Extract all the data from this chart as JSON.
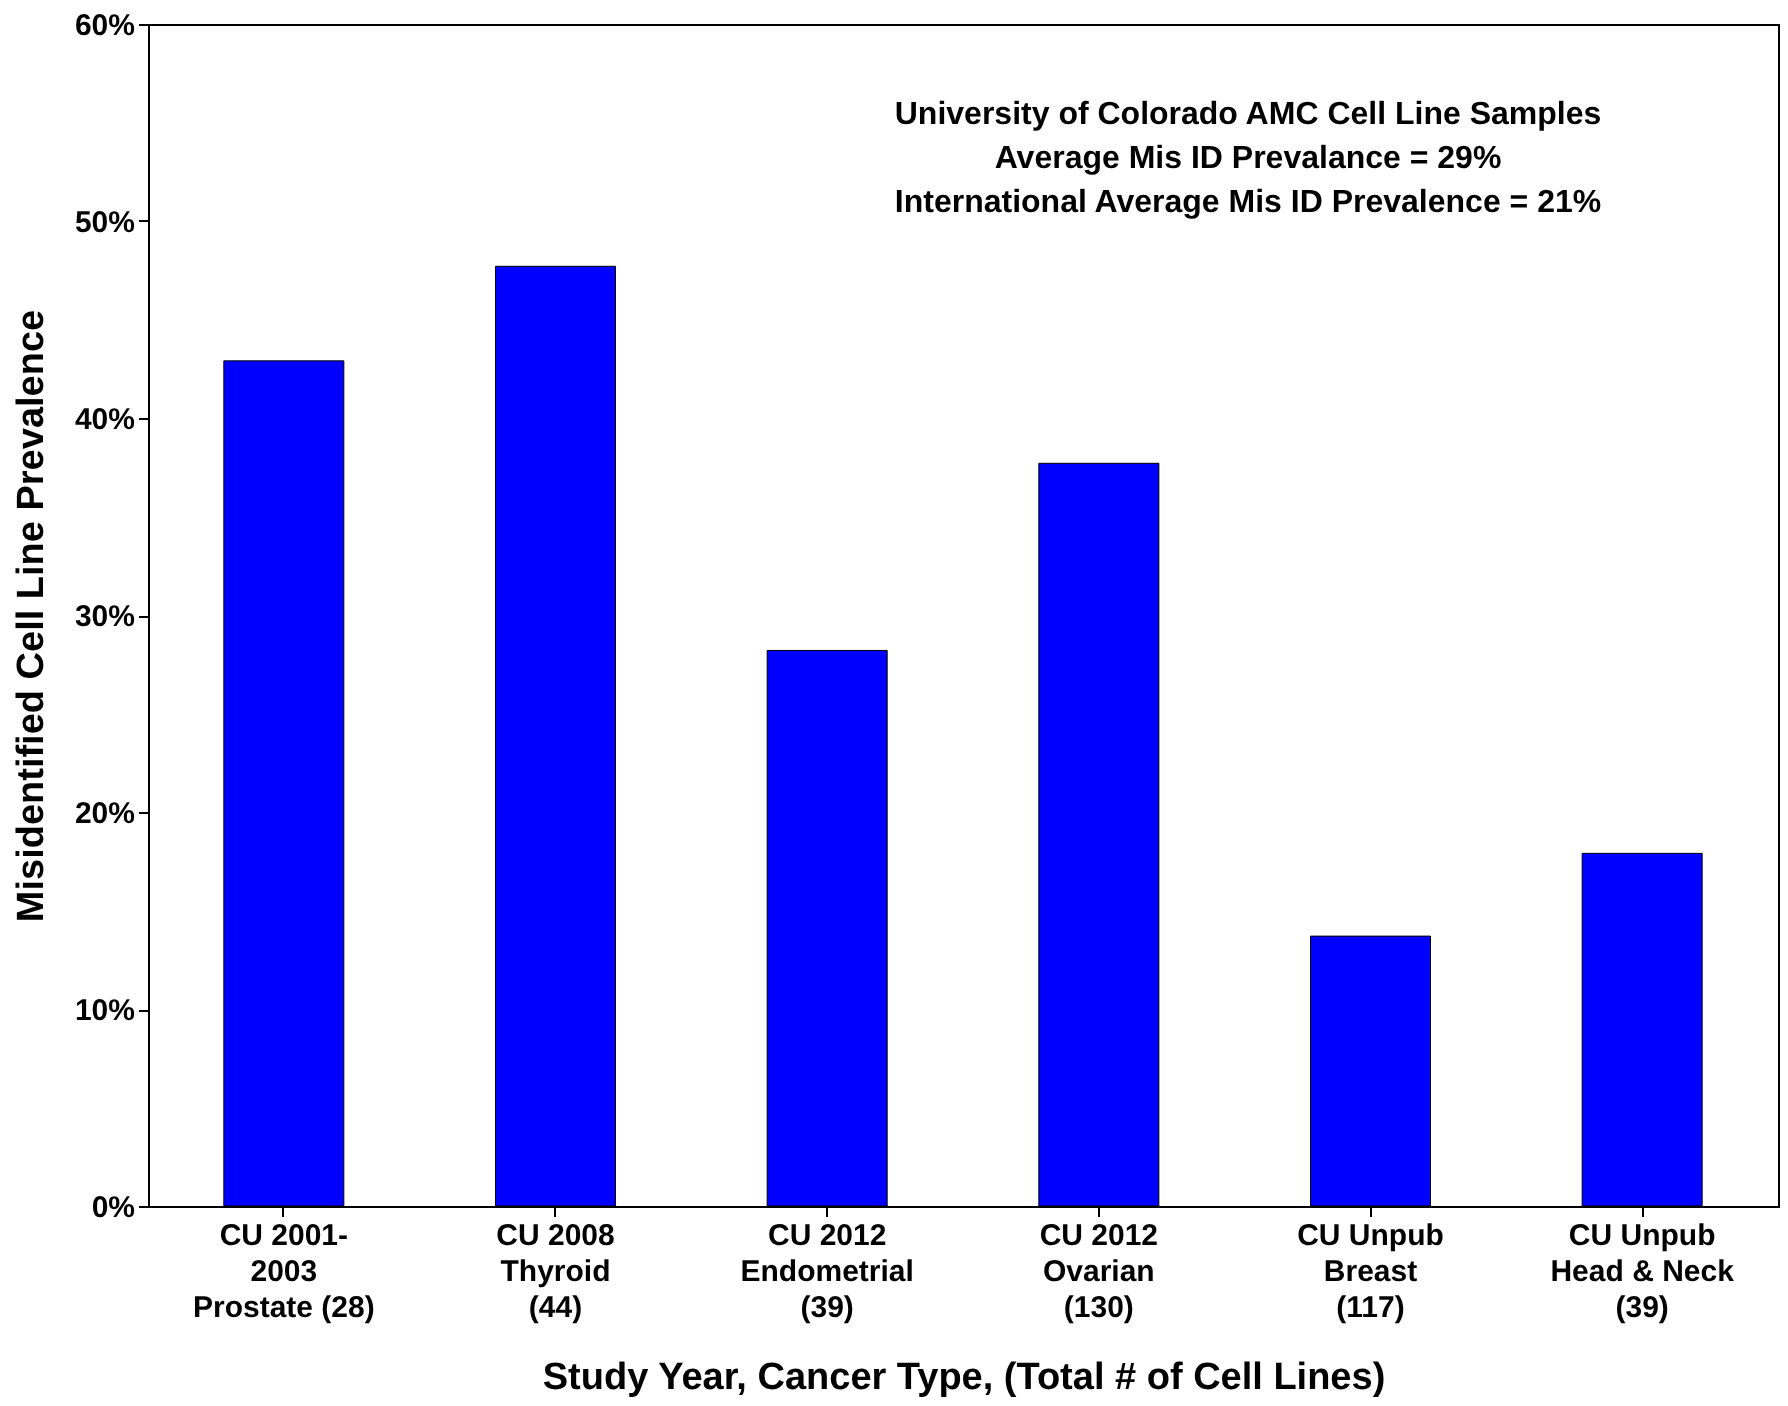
{
  "chart_data": {
    "type": "bar",
    "xlabel": "Study Year, Cancer Type, (Total # of Cell Lines)",
    "ylabel": "Misidentified Cell Line Prevalence",
    "categories": [
      "CU 2001-\n2003\nProstate (28)",
      "CU 2008\nThyroid\n(44)",
      "CU 2012\nEndometrial\n(39)",
      "CU 2012\nOvarian\n(130)",
      "CU Unpub\nBreast\n(117)",
      "CU Unpub\nHead & Neck\n(39)"
    ],
    "values": [
      42.9,
      47.7,
      28.2,
      37.7,
      13.7,
      17.9
    ],
    "color": "#0000ff",
    "ylim": [
      0,
      60
    ],
    "yticks": [
      {
        "value": 0,
        "label": "0%"
      },
      {
        "value": 10,
        "label": "10%"
      },
      {
        "value": 20,
        "label": "20%"
      },
      {
        "value": 30,
        "label": "30%"
      },
      {
        "value": 40,
        "label": "40%"
      },
      {
        "value": 50,
        "label": "50%"
      },
      {
        "value": 60,
        "label": "60%"
      }
    ],
    "annotations": [
      "University of Colorado AMC Cell Line Samples",
      "Average Mis ID Prevalance = 29%",
      "International Average Mis ID Prevalence = 21%"
    ],
    "grid": false
  }
}
